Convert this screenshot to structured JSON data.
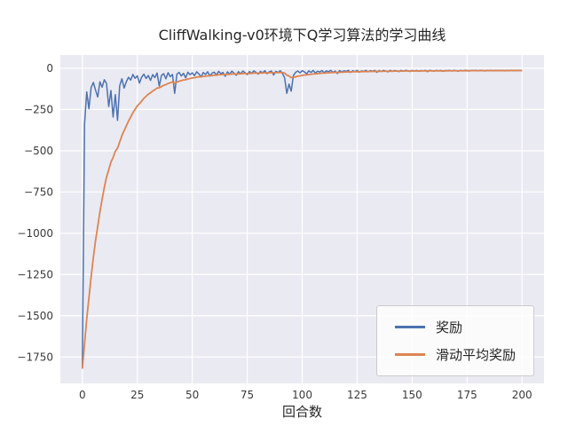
{
  "chart": {
    "title": "CliffWalking-v0环境下Q学习算法的学习曲线",
    "xlabel": "回合数"
  },
  "legend": {
    "items": [
      {
        "label": "奖励",
        "color": "#4c72b0"
      },
      {
        "label": "滑动平均奖励",
        "color": "#dd8452"
      }
    ]
  },
  "colors": {
    "plot_bg": "#eaeaf2",
    "grid": "#ffffff",
    "tick_text": "#3a3a3a"
  },
  "chart_data": {
    "type": "line",
    "title": "CliffWalking-v0环境下Q学习算法的学习曲线",
    "xlabel": "回合数",
    "ylabel": "",
    "grid": true,
    "legend_position": "lower right",
    "xlim": [
      -10,
      210
    ],
    "ylim": [
      -1910,
      80
    ],
    "x_ticks": [
      0,
      25,
      50,
      75,
      100,
      125,
      150,
      175,
      200
    ],
    "y_ticks": [
      0,
      -250,
      -500,
      -750,
      -1000,
      -1250,
      -1500,
      -1750
    ],
    "series": [
      {
        "name": "奖励",
        "color": "#4c72b0",
        "x_start": 0,
        "x_step": 1,
        "values": [
          -1820,
          -339,
          -144,
          -246,
          -117,
          -86,
          -132,
          -174,
          -82,
          -115,
          -70,
          -92,
          -232,
          -135,
          -296,
          -160,
          -316,
          -106,
          -64,
          -120,
          -82,
          -55,
          -72,
          -38,
          -61,
          -46,
          -90,
          -53,
          -36,
          -62,
          -44,
          -74,
          -39,
          -57,
          -29,
          -109,
          -43,
          -33,
          -64,
          -27,
          -51,
          -38,
          -152,
          -36,
          -25,
          -47,
          -31,
          -58,
          -24,
          -39,
          -28,
          -45,
          -22,
          -34,
          -52,
          -26,
          -38,
          -21,
          -47,
          -30,
          -24,
          -41,
          -19,
          -33,
          -26,
          -49,
          -22,
          -36,
          -18,
          -29,
          -43,
          -21,
          -34,
          -17,
          -27,
          -39,
          -20,
          -31,
          -16,
          -25,
          -36,
          -19,
          -28,
          -15,
          -33,
          -22,
          -17,
          -41,
          -19,
          -26,
          -15,
          -31,
          -58,
          -152,
          -96,
          -139,
          -44,
          -25,
          -17,
          -28,
          -15,
          -22,
          -34,
          -16,
          -26,
          -13,
          -30,
          -18,
          -23,
          -14,
          -27,
          -16,
          -21,
          -13,
          -25,
          -17,
          -32,
          -14,
          -22,
          -16,
          -19,
          -13,
          -26,
          -15,
          -21,
          -13,
          -24,
          -16,
          -19,
          -13,
          -22,
          -15,
          -18,
          -13,
          -25,
          -14,
          -20,
          -13,
          -17,
          -22,
          -13,
          -19,
          -14,
          -16,
          -21,
          -13,
          -18,
          -13,
          -15,
          -20,
          -13,
          -17,
          -13,
          -19,
          -14,
          -16,
          -13,
          -21,
          -13,
          -15,
          -18,
          -13,
          -16,
          -13,
          -19,
          -14,
          -15,
          -13,
          -17,
          -13,
          -15,
          -18,
          -13,
          -16,
          -13,
          -14,
          -17,
          -13,
          -15,
          -13,
          -16,
          -13,
          -14,
          -17,
          -13,
          -15,
          -13,
          -16,
          -13,
          -14,
          -15,
          -13,
          -16,
          -13,
          -14,
          -13,
          -15,
          -13,
          -14,
          -13,
          -15
        ]
      },
      {
        "name": "滑动平均奖励",
        "color": "#dd8452",
        "derived_from": "奖励",
        "method": "exponential_moving_average",
        "alpha": 0.1
      }
    ]
  }
}
